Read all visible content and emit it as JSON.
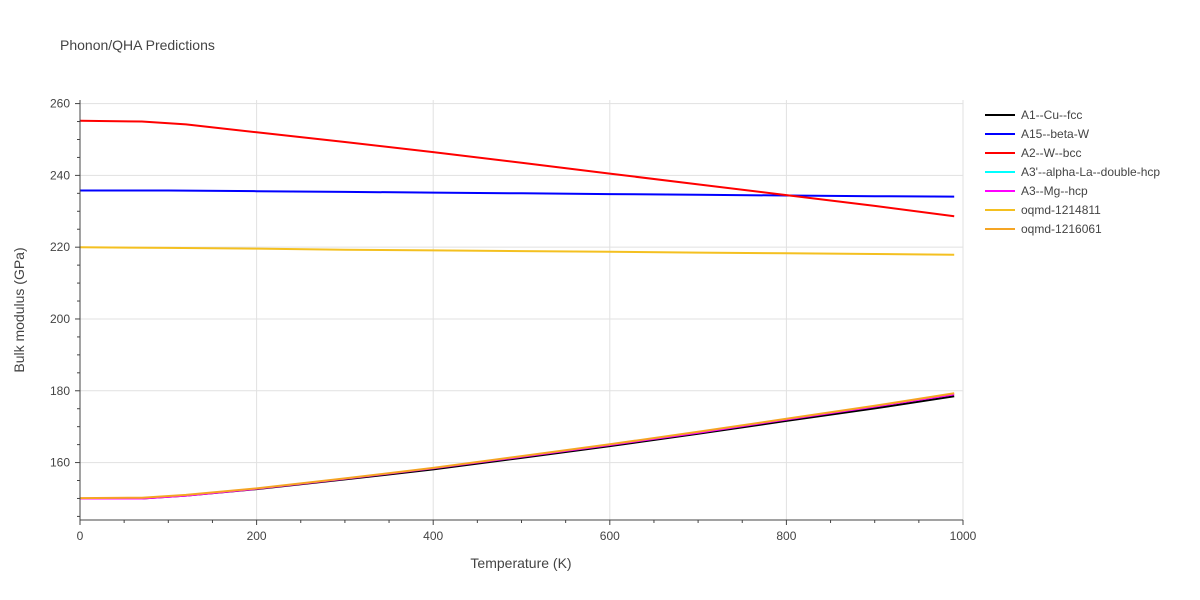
{
  "chart_data": {
    "type": "line",
    "title": "Phonon/QHA Predictions",
    "xlabel": "Temperature (K)",
    "ylabel": "Bulk modulus (GPa)",
    "xlim": [
      0,
      1000
    ],
    "ylim": [
      144,
      261
    ],
    "x_ticks": [
      0,
      200,
      400,
      600,
      800,
      1000
    ],
    "y_ticks": [
      160,
      180,
      200,
      220,
      240,
      260
    ],
    "x_tick_labels": [
      "0",
      "200",
      "400",
      "600",
      "800",
      "1000"
    ],
    "y_tick_labels": [
      "160",
      "180",
      "200",
      "220",
      "240",
      "260"
    ],
    "grid": true,
    "legend_position": "right",
    "series": [
      {
        "name": "A1--Cu--fcc",
        "color": "#000000",
        "x": [
          0,
          70,
          120,
          200,
          300,
          400,
          500,
          600,
          700,
          800,
          900,
          990
        ],
        "y": [
          150.0,
          150.0,
          150.8,
          152.6,
          155.3,
          158.1,
          161.3,
          164.6,
          168.0,
          171.6,
          175.1,
          178.5
        ]
      },
      {
        "name": "A15--beta-W",
        "color": "#0000ff",
        "x": [
          0,
          100,
          200,
          300,
          400,
          500,
          600,
          700,
          800,
          900,
          990
        ],
        "y": [
          235.8,
          235.8,
          235.6,
          235.4,
          235.2,
          235.0,
          234.8,
          234.6,
          234.4,
          234.2,
          234.1
        ]
      },
      {
        "name": "A2--W--bcc",
        "color": "#ff0000",
        "x": [
          0,
          70,
          120,
          200,
          300,
          400,
          500,
          600,
          700,
          800,
          900,
          990
        ],
        "y": [
          255.2,
          255.0,
          254.2,
          252.0,
          249.3,
          246.5,
          243.5,
          240.5,
          237.5,
          234.5,
          231.5,
          228.6
        ]
      },
      {
        "name": "A3'--alpha-La--double-hcp",
        "color": "#00ffff",
        "x": [],
        "y": []
      },
      {
        "name": "A3--Mg--hcp",
        "color": "#ff00ff",
        "x": [
          0,
          70,
          120,
          200,
          300,
          400,
          500,
          600,
          700,
          800,
          900,
          990
        ],
        "y": [
          150.0,
          150.0,
          150.8,
          152.7,
          155.5,
          158.4,
          161.6,
          164.9,
          168.3,
          172.0,
          175.6,
          179.0
        ]
      },
      {
        "name": "oqmd-1214811",
        "color": "#f4c020",
        "x": [
          0,
          100,
          200,
          300,
          400,
          500,
          600,
          700,
          800,
          900,
          990
        ],
        "y": [
          220.0,
          219.8,
          219.6,
          219.3,
          219.1,
          218.9,
          218.7,
          218.5,
          218.3,
          218.1,
          217.9
        ]
      },
      {
        "name": "oqmd-1216061",
        "color": "#f5a524",
        "x": [
          0,
          70,
          120,
          200,
          300,
          400,
          500,
          600,
          700,
          800,
          900,
          990
        ],
        "y": [
          150.1,
          150.2,
          151.0,
          152.8,
          155.6,
          158.5,
          161.8,
          165.1,
          168.6,
          172.2,
          175.8,
          179.3
        ]
      }
    ]
  }
}
